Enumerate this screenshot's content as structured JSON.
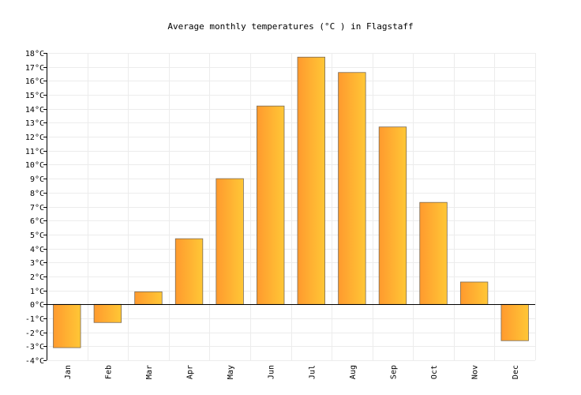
{
  "chart_data": {
    "type": "bar",
    "title": "Average monthly temperatures (°C ) in Flagstaff",
    "categories": [
      "Jan",
      "Feb",
      "Mar",
      "Apr",
      "May",
      "Jun",
      "Jul",
      "Aug",
      "Sep",
      "Oct",
      "Nov",
      "Dec"
    ],
    "values": [
      -3.1,
      -1.3,
      0.9,
      4.7,
      9.0,
      14.2,
      17.7,
      16.6,
      12.7,
      7.3,
      1.6,
      -2.6
    ],
    "ylim": [
      -4,
      18
    ],
    "yticks": [
      -4,
      -3,
      -2,
      -1,
      0,
      1,
      2,
      3,
      4,
      5,
      6,
      7,
      8,
      9,
      10,
      11,
      12,
      13,
      14,
      15,
      16,
      17,
      18
    ],
    "y_unit": "°C",
    "grid": true,
    "colors": {
      "bar_left": "#ff9a2e",
      "bar_right": "#ffc736",
      "zero_line": "#000000"
    }
  }
}
